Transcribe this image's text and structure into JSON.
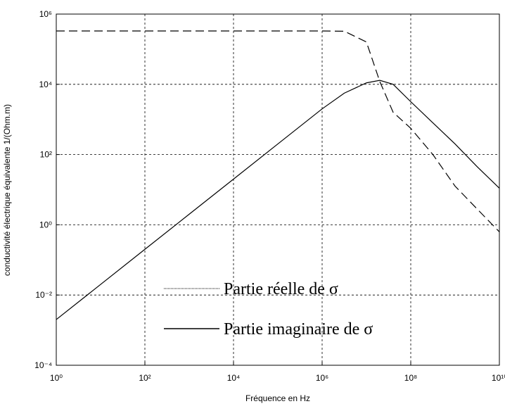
{
  "chart_data": {
    "type": "line",
    "xlabel": "Fréquence en Hz",
    "ylabel": "conductivité électrique équivalente 1/(Ohm.m)",
    "xscale": "log",
    "yscale": "log",
    "grid": true,
    "x": [
      1,
      10,
      100,
      1000,
      10000,
      100000,
      1000000,
      3160000,
      10000000,
      20000000,
      40000000,
      100000000,
      316000000,
      1000000000,
      3160000000,
      10000000000
    ],
    "series": [
      {
        "name": "Partie réelle de σ",
        "color": "#000000",
        "dash": "12,6",
        "values": [
          330000,
          330000,
          330000,
          330000,
          330000,
          330000,
          330000,
          325000,
          160000,
          12000,
          1600,
          560,
          100,
          12.6,
          2.8,
          0.63
        ]
      },
      {
        "name": "Partie imaginaire de σ",
        "color": "#000000",
        "dash": "",
        "values": [
          0.002,
          0.02,
          0.2,
          2,
          20,
          200,
          2000,
          5600,
          11000,
          13000,
          10000,
          3200,
          800,
          200,
          45,
          11
        ]
      }
    ],
    "xlim": [
      1,
      10000000000
    ],
    "ylim": [
      0.0001,
      1000000
    ],
    "xticks": [
      {
        "value": 1,
        "label": "10⁰"
      },
      {
        "value": 100,
        "label": "10²"
      },
      {
        "value": 10000,
        "label": "10⁴"
      },
      {
        "value": 1000000,
        "label": "10⁶"
      },
      {
        "value": 100000000,
        "label": "10⁸"
      },
      {
        "value": 10000000000,
        "label": "10¹⁰"
      }
    ],
    "yticks": [
      {
        "value": 0.0001,
        "label": "10⁻⁴"
      },
      {
        "value": 0.01,
        "label": "10⁻²"
      },
      {
        "value": 1,
        "label": "10⁰"
      },
      {
        "value": 100,
        "label": "10²"
      },
      {
        "value": 10000,
        "label": "10⁴"
      },
      {
        "value": 1000000,
        "label": "10⁶"
      }
    ]
  }
}
